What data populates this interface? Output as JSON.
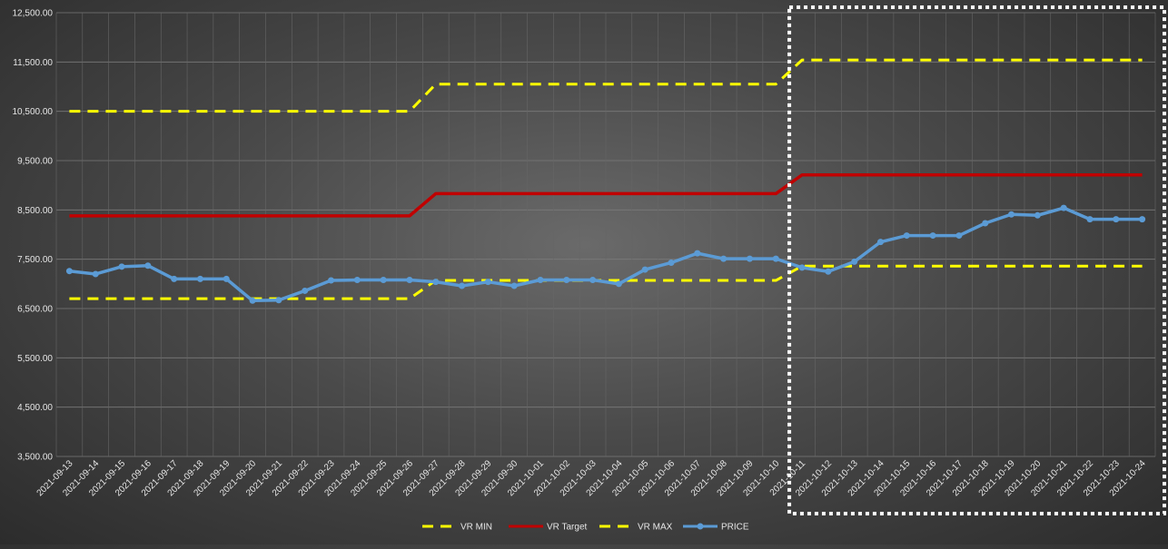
{
  "chart_data": {
    "type": "line",
    "title": "",
    "xlabel": "",
    "ylabel": "",
    "ylim": [
      3500,
      12500
    ],
    "yticks": [
      "3,500.00",
      "4,500.00",
      "5,500.00",
      "6,500.00",
      "7,500.00",
      "8,500.00",
      "9,500.00",
      "10,500.00",
      "11,500.00",
      "12,500.00"
    ],
    "x": [
      "2021-09-13",
      "2021-09-14",
      "2021-09-15",
      "2021-09-16",
      "2021-09-17",
      "2021-09-18",
      "2021-09-19",
      "2021-09-20",
      "2021-09-21",
      "2021-09-22",
      "2021-09-23",
      "2021-09-24",
      "2021-09-25",
      "2021-09-26",
      "2021-09-27",
      "2021-09-28",
      "2021-09-29",
      "2021-09-30",
      "2021-10-01",
      "2021-10-02",
      "2021-10-03",
      "2021-10-04",
      "2021-10-05",
      "2021-10-06",
      "2021-10-07",
      "2021-10-08",
      "2021-10-09",
      "2021-10-10",
      "2021-10-11",
      "2021-10-12",
      "2021-10-13",
      "2021-10-14",
      "2021-10-15",
      "2021-10-16",
      "2021-10-17",
      "2021-10-18",
      "2021-10-19",
      "2021-10-20",
      "2021-10-21",
      "2021-10-22",
      "2021-10-23",
      "2021-10-24"
    ],
    "grid": true,
    "legend_position": "bottom",
    "highlight_box": {
      "from": "2021-10-11",
      "to": "2021-10-24"
    },
    "series": [
      {
        "name": "VR MIN",
        "color": "#ffff00",
        "style": "dashed",
        "values": [
          6700,
          6700,
          6700,
          6700,
          6700,
          6700,
          6700,
          6700,
          6700,
          6700,
          6700,
          6700,
          6700,
          6700,
          7070,
          7070,
          7070,
          7070,
          7070,
          7070,
          7070,
          7070,
          7070,
          7070,
          7070,
          7070,
          7070,
          7070,
          7360,
          7360,
          7360,
          7360,
          7360,
          7360,
          7360,
          7360,
          7360,
          7360,
          7360,
          7360,
          7360,
          7360
        ]
      },
      {
        "name": "VR Target",
        "color": "#c00000",
        "style": "solid",
        "values": [
          8380,
          8380,
          8380,
          8380,
          8380,
          8380,
          8380,
          8380,
          8380,
          8380,
          8380,
          8380,
          8380,
          8380,
          8830,
          8830,
          8830,
          8830,
          8830,
          8830,
          8830,
          8830,
          8830,
          8830,
          8830,
          8830,
          8830,
          8830,
          9210,
          9210,
          9210,
          9210,
          9210,
          9210,
          9210,
          9210,
          9210,
          9210,
          9210,
          9210,
          9210,
          9210
        ]
      },
      {
        "name": "VR MAX",
        "color": "#ffff00",
        "style": "dashed",
        "values": [
          10500,
          10500,
          10500,
          10500,
          10500,
          10500,
          10500,
          10500,
          10500,
          10500,
          10500,
          10500,
          10500,
          10500,
          11050,
          11050,
          11050,
          11050,
          11050,
          11050,
          11050,
          11050,
          11050,
          11050,
          11050,
          11050,
          11050,
          11050,
          11540,
          11540,
          11540,
          11540,
          11540,
          11540,
          11540,
          11540,
          11540,
          11540,
          11540,
          11540,
          11540,
          11540
        ]
      },
      {
        "name": "PRICE",
        "color": "#5b9bd5",
        "style": "solid-markers",
        "values": [
          7260,
          7200,
          7350,
          7370,
          7100,
          7100,
          7100,
          6660,
          6670,
          6860,
          7070,
          7080,
          7080,
          7080,
          7040,
          6960,
          7040,
          6960,
          7080,
          7080,
          7080,
          7000,
          7290,
          7430,
          7620,
          7510,
          7510,
          7510,
          7330,
          7250,
          7450,
          7850,
          7980,
          7980,
          7980,
          8230,
          8410,
          8390,
          8540,
          8310,
          8310,
          8310
        ]
      }
    ]
  }
}
